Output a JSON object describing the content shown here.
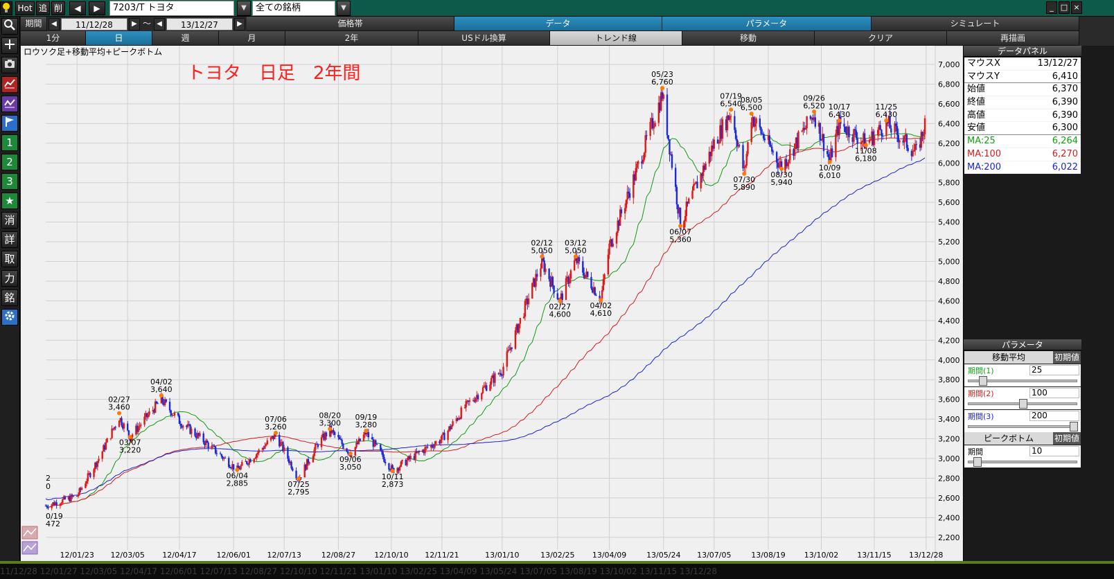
{
  "titlebar": {
    "hot": "Hot",
    "add": "追",
    "del": "削",
    "symbol": "7203/T トヨタ",
    "universe": "全ての銘柄",
    "min": "_",
    "max": "□",
    "close": "×"
  },
  "toolbar1": {
    "period_label": "期間",
    "from": "11/12/28",
    "tilde": "～",
    "to": "13/12/27",
    "tabs": [
      "価格帯",
      "データ",
      "パラメータ",
      "シミュレート"
    ],
    "active_tabs": [
      1,
      2
    ]
  },
  "toolbar2": {
    "buttons": [
      "1分",
      "日",
      "週",
      "月",
      "2年",
      "USドル換算",
      "トレンド線",
      "移動",
      "クリア",
      "再描画"
    ],
    "active": 1
  },
  "sidebar": {
    "glyphs": [
      "🔍",
      "+",
      "📷",
      "",
      "",
      "",
      "1",
      "2",
      "3",
      "★",
      "消",
      "詳",
      "取",
      "力",
      "銘",
      "⚙"
    ]
  },
  "chart_header": "ロウソク足+移動平均+ピークボトム",
  "chart_title": "トヨタ　日足　2年間",
  "chart_data": {
    "type": "candlestick",
    "ylim": [
      2100,
      7100
    ],
    "yticks": [
      2200,
      2400,
      2600,
      2800,
      3000,
      3200,
      3400,
      3600,
      3800,
      4000,
      4200,
      4400,
      4600,
      4800,
      5000,
      5200,
      5400,
      5600,
      5800,
      6000,
      6200,
      6400,
      6600,
      6800,
      7000
    ],
    "ytick_labels": [
      "2,200",
      "2,400",
      "2,600",
      "2,800",
      "3,000",
      "3,200",
      "3,400",
      "3,600",
      "3,800",
      "4,000",
      "4,200",
      "4,400",
      "4,600",
      "4,800",
      "5,000",
      "5,200",
      "5,400",
      "5,600",
      "5,800",
      "6,000",
      "6,200",
      "6,400",
      "6,600",
      "6,800",
      "7,000"
    ],
    "xticks": [
      "12/01/23",
      "12/03/05",
      "12/04/17",
      "12/06/01",
      "12/07/13",
      "12/08/27",
      "12/10/10",
      "12/11/21",
      "13/01/10",
      "13/02/25",
      "13/04/09",
      "13/05/24",
      "13/07/05",
      "13/08/19",
      "13/10/02",
      "13/11/15",
      "13/12/28"
    ],
    "price_path": [
      [
        "11/12/28",
        2520
      ],
      [
        "12/01/23",
        2620
      ],
      [
        "12/02/10",
        3000
      ],
      [
        "12/02/27",
        3420
      ],
      [
        "12/03/07",
        3220
      ],
      [
        "12/04/02",
        3600
      ],
      [
        "12/04/17",
        3380
      ],
      [
        "12/05/10",
        3150
      ],
      [
        "12/06/04",
        2885
      ],
      [
        "12/06/20",
        3050
      ],
      [
        "12/07/06",
        3240
      ],
      [
        "12/07/25",
        2795
      ],
      [
        "12/08/10",
        3150
      ],
      [
        "12/08/20",
        3290
      ],
      [
        "12/09/06",
        3050
      ],
      [
        "12/09/19",
        3260
      ],
      [
        "12/10/11",
        2880
      ],
      [
        "12/11/01",
        3050
      ],
      [
        "12/11/21",
        3200
      ],
      [
        "12/12/10",
        3520
      ],
      [
        "13/01/10",
        3900
      ],
      [
        "13/02/12",
        5000
      ],
      [
        "13/02/27",
        4600
      ],
      [
        "13/03/12",
        5020
      ],
      [
        "13/04/02",
        4620
      ],
      [
        "13/04/09",
        5150
      ],
      [
        "13/05/01",
        5900
      ],
      [
        "13/05/23",
        6700
      ],
      [
        "13/06/07",
        5380
      ],
      [
        "13/07/05",
        6200
      ],
      [
        "13/07/19",
        6520
      ],
      [
        "13/07/30",
        5900
      ],
      [
        "13/08/05",
        6480
      ],
      [
        "13/08/30",
        5960
      ],
      [
        "13/09/26",
        6500
      ],
      [
        "13/10/09",
        6020
      ],
      [
        "13/10/17",
        6400
      ],
      [
        "13/11/08",
        6200
      ],
      [
        "13/11/25",
        6400
      ],
      [
        "13/12/20",
        6100
      ],
      [
        "13/12/27",
        6390
      ]
    ],
    "series": [
      {
        "name": "MA:25",
        "color": "#129a12"
      },
      {
        "name": "MA:100",
        "color": "#d61c1c"
      },
      {
        "name": "MA:200",
        "color": "#1a22d8"
      }
    ],
    "peaks": [
      {
        "date": "02/27",
        "value": "3,460",
        "pos": "above",
        "d": "12/02/27",
        "p": 3460
      },
      {
        "date": "03/07",
        "value": "3,220",
        "pos": "below",
        "d": "12/03/07",
        "p": 3220
      },
      {
        "date": "04/02",
        "value": "3,640",
        "pos": "above",
        "d": "12/04/02",
        "p": 3640
      },
      {
        "date": "06/04",
        "value": "2,885",
        "pos": "below",
        "d": "12/06/04",
        "p": 2885
      },
      {
        "date": "07/06",
        "value": "3,260",
        "pos": "above",
        "d": "12/07/06",
        "p": 3260
      },
      {
        "date": "07/25",
        "value": "2,795",
        "pos": "below",
        "d": "12/07/25",
        "p": 2795
      },
      {
        "date": "08/20",
        "value": "3,300",
        "pos": "above",
        "d": "12/08/20",
        "p": 3300
      },
      {
        "date": "09/06",
        "value": "3,050",
        "pos": "below",
        "d": "12/09/06",
        "p": 3050
      },
      {
        "date": "09/19",
        "value": "3,280",
        "pos": "above",
        "d": "12/09/19",
        "p": 3280
      },
      {
        "date": "10/11",
        "value": "2,873",
        "pos": "below",
        "d": "12/10/11",
        "p": 2873
      },
      {
        "date": "02/12",
        "value": "5,050",
        "pos": "above",
        "d": "13/02/12",
        "p": 5050
      },
      {
        "date": "02/27",
        "value": "4,600",
        "pos": "below",
        "d": "13/02/27",
        "p": 4600
      },
      {
        "date": "03/12",
        "value": "5,050",
        "pos": "above",
        "d": "13/03/12",
        "p": 5050
      },
      {
        "date": "04/02",
        "value": "4,610",
        "pos": "below",
        "d": "13/04/02",
        "p": 4610
      },
      {
        "date": "05/23",
        "value": "6,760",
        "pos": "above",
        "d": "13/05/23",
        "p": 6760
      },
      {
        "date": "06/07",
        "value": "5,360",
        "pos": "below",
        "d": "13/06/07",
        "p": 5360
      },
      {
        "date": "07/19",
        "value": "6,540",
        "pos": "above",
        "d": "13/07/19",
        "p": 6540
      },
      {
        "date": "07/30",
        "value": "5,890",
        "pos": "below",
        "d": "13/07/30",
        "p": 5890
      },
      {
        "date": "08/05",
        "value": "6,500",
        "pos": "above",
        "d": "13/08/05",
        "p": 6500
      },
      {
        "date": "08/30",
        "value": "5,940",
        "pos": "below",
        "d": "13/08/30",
        "p": 5940
      },
      {
        "date": "09/26",
        "value": "6,520",
        "pos": "above",
        "d": "13/09/26",
        "p": 6520
      },
      {
        "date": "10/09",
        "value": "6,010",
        "pos": "below",
        "d": "13/10/09",
        "p": 6010
      },
      {
        "date": "10/17",
        "value": "6,430",
        "pos": "above",
        "d": "13/10/17",
        "p": 6430
      },
      {
        "date": "11/08",
        "value": "6,180",
        "pos": "below",
        "d": "13/11/08",
        "p": 6180
      },
      {
        "date": "11/25",
        "value": "6,430",
        "pos": "above",
        "d": "13/11/25",
        "p": 6430
      }
    ],
    "edge_labels": {
      "top": "2",
      "top2": "0",
      "bottom": "0/19",
      "bottom2": "472"
    },
    "colors": {
      "up": "#e01818",
      "down": "#1b2bd9",
      "peak": "#ff7a00"
    }
  },
  "data_panel": {
    "title": "データパネル",
    "rows": [
      {
        "label": "マウスX",
        "value": "13/12/27",
        "color": "#000000"
      },
      {
        "label": "マウスY",
        "value": "6,410",
        "color": "#000000"
      },
      {
        "label": "始値",
        "value": "6,370",
        "color": "#000000"
      },
      {
        "label": "終値",
        "value": "6,390",
        "color": "#000000"
      },
      {
        "label": "高値",
        "value": "6,390",
        "color": "#000000"
      },
      {
        "label": "安値",
        "value": "6,300",
        "color": "#000000"
      },
      {
        "label": "MA:25",
        "value": "6,264",
        "color": "#11a011"
      },
      {
        "label": "MA:100",
        "value": "6,270",
        "color": "#d61c1c"
      },
      {
        "label": "MA:200",
        "value": "6,022",
        "color": "#1a22d8"
      }
    ]
  },
  "param_panel": {
    "title": "パラメータ",
    "ma_head": "移動平均",
    "reset": "初期値",
    "periods": [
      {
        "label": "期間(1)",
        "value": "25",
        "color": "#11a011",
        "level": 0.1
      },
      {
        "label": "期間(2)",
        "value": "100",
        "color": "#d61c1c",
        "level": 0.5
      },
      {
        "label": "期間(3)",
        "value": "200",
        "color": "#1a22d8",
        "level": 1.0
      }
    ],
    "pb_head": "ピークボトム",
    "pb_label": "期間",
    "pb_value": "10",
    "pb_level": 0.05
  },
  "bottom_strip": "11/12/28    12/01/27    12/03/05    12/04/17    12/06/01    12/07/13    12/08/27    12/10/10    12/11/21    13/01/10    13/02/25    13/04/09    13/05/24    13/07/05    13/08/19    13/10/02    13/11/15    13/12/28"
}
